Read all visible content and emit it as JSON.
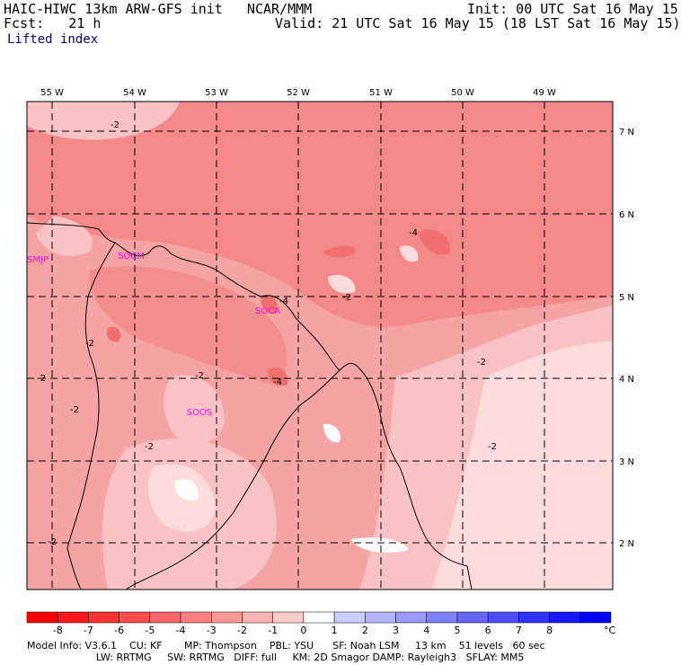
{
  "header": {
    "model_line": "HAIC-HIWC 13km ARW-GFS init   NCAR/MMM",
    "init": "Init: 00 UTC Sat 16 May 15",
    "fcst": "Fcst:   21 h",
    "valid": "Valid: 21 UTC Sat 16 May 15 (18 LST Sat 16 May 15)",
    "field": "Lifted index"
  },
  "map": {
    "lon_labels": [
      "55 W",
      "54 W",
      "53 W",
      "52 W",
      "51 W",
      "50 W",
      "49 W"
    ],
    "lat_labels": [
      "7 N",
      "6 N",
      "5 N",
      "4 N",
      "3 N",
      "2 N"
    ],
    "stations": [
      {
        "id": "SMJP"
      },
      {
        "id": "SOCM"
      },
      {
        "id": "SOCA"
      },
      {
        "id": "SOOS"
      }
    ],
    "contour_labels": [
      "-2",
      "-2",
      "-2",
      "-2",
      "-2",
      "-2",
      "-2",
      "-2",
      "-2",
      "-2",
      "-4",
      "-4",
      "-4"
    ],
    "colors": {
      "deep": "#f28585",
      "mid": "#f5a3a3",
      "light": "#f9c3c3",
      "pale": "#fcdcdc",
      "white": "#ffffff",
      "station": "#ff00ff"
    }
  },
  "colorbar": {
    "labels": [
      "-8",
      "-7",
      "-6",
      "-5",
      "-4",
      "-3",
      "-2",
      "-1",
      "0",
      "1",
      "2",
      "3",
      "4",
      "5",
      "6",
      "7",
      "8"
    ],
    "unit": "°C",
    "colors": [
      "#ff0000",
      "#ff1a1a",
      "#ff3333",
      "#ff4d4d",
      "#ff6666",
      "#ff8080",
      "#ff9999",
      "#ffb3b3",
      "#ffcccc",
      "#ffffff",
      "#ccccff",
      "#b3b3ff",
      "#9999ff",
      "#8080ff",
      "#6666ff",
      "#4d4dff",
      "#3333ff",
      "#1a1aff",
      "#0000ff"
    ]
  },
  "footer": {
    "line1": "Model Info: V3.6.1    CU: KF       MP: Thompson    PBL: YSU      SF: Noah LSM     13 km    51 levels   60 sec",
    "line2": "                      LW: RRTMG     SW: RRTMG   DIFF: full     KM: 2D Smagor DAMP: Rayleigh3   SFLAY: MM5"
  }
}
